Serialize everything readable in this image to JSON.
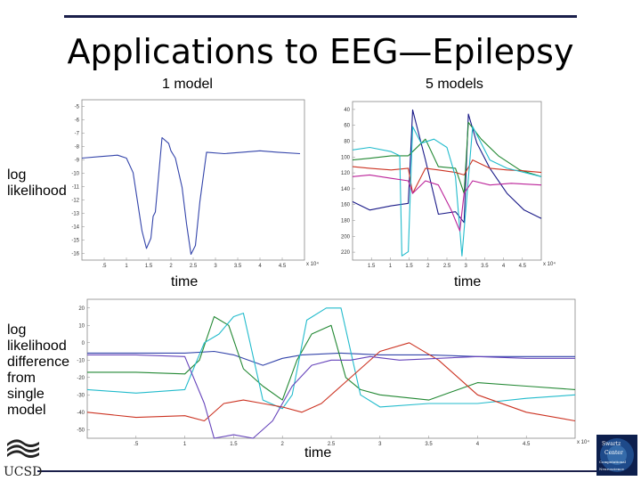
{
  "slide": {
    "title": "Applications to EEG—Epilepsy",
    "label_1model": "1 model",
    "label_5models": "5 models",
    "label_loglik": "log likelihood",
    "label_time_left": "time",
    "label_time_right": "time",
    "label_time_bottom": "time",
    "label_diff": "log likelihood difference from single model",
    "logo_left_text": "UCSD",
    "logo_right_lines": [
      "Swartz",
      "Center",
      "Computational",
      "Neuroscience"
    ]
  },
  "colors": {
    "rule": "#1a1f4a",
    "blue": "#3344aa",
    "green": "#228833",
    "red": "#cc3322",
    "cyan": "#22bbcc",
    "magenta": "#bb2299",
    "navy": "#1a1a88",
    "purple": "#6644bb"
  },
  "chart_data": [
    {
      "type": "line",
      "x_ticks": [
        ".5",
        "1",
        "1.5",
        "2",
        "2.5",
        "3",
        "3.5",
        "4",
        "4.5"
      ],
      "y_ticks": [
        "-5",
        "-6",
        "-7",
        "-8",
        "-9",
        "-10",
        "-11",
        "-12",
        "-13",
        "-14",
        "-15",
        "-16"
      ],
      "x_exponent": "x 10⁴",
      "ylim": [
        -16,
        -5
      ],
      "xlim": [
        0,
        5
      ],
      "series": [
        {
          "color": "#3344aa",
          "x": [
            0.0,
            0.4,
            0.8,
            1.0,
            1.15,
            1.25,
            1.35,
            1.45,
            1.55,
            1.6,
            1.65,
            1.8,
            1.95,
            2.0,
            2.1,
            2.25,
            2.35,
            2.45,
            2.55,
            2.65,
            2.8,
            3.2,
            3.6,
            4.0,
            4.4,
            4.9
          ],
          "y": [
            -9.0,
            -8.9,
            -8.8,
            -9.0,
            -10.0,
            -12.0,
            -14.0,
            -15.2,
            -14.5,
            -13.0,
            -12.7,
            -7.6,
            -8.0,
            -8.5,
            -9.0,
            -11.0,
            -13.5,
            -15.6,
            -15.0,
            -12.0,
            -8.6,
            -8.7,
            -8.6,
            -8.5,
            -8.6,
            -8.7
          ]
        }
      ]
    },
    {
      "type": "line",
      "x_ticks": [
        "1.5",
        "1",
        "1.5",
        "2",
        "2.5",
        "3",
        "3.5",
        "4",
        "4.5"
      ],
      "y_ticks": [
        "40",
        "60",
        "80",
        "100",
        "120",
        "140",
        "160",
        "180",
        "200",
        "220"
      ],
      "x_exponent": "x 10⁴",
      "ylim": [
        220,
        30
      ],
      "xlim": [
        0.6,
        5
      ],
      "series": [
        {
          "color": "#1a1a88",
          "x": [
            0.6,
            1.0,
            1.5,
            1.9,
            2.0,
            2.3,
            2.6,
            3.0,
            3.2,
            3.3,
            3.5,
            3.8,
            4.2,
            4.6,
            5.0
          ],
          "y": [
            150,
            160,
            155,
            152,
            40,
            100,
            165,
            162,
            175,
            45,
            80,
            110,
            140,
            160,
            170
          ]
        },
        {
          "color": "#228833",
          "x": [
            0.6,
            1.0,
            1.5,
            1.9,
            2.0,
            2.3,
            2.6,
            3.0,
            3.2,
            3.3,
            3.6,
            4.0,
            4.5,
            5.0
          ],
          "y": [
            100,
            98,
            95,
            95,
            90,
            75,
            108,
            110,
            140,
            55,
            75,
            95,
            112,
            120
          ]
        },
        {
          "color": "#cc3322",
          "x": [
            0.6,
            1.0,
            1.5,
            1.9,
            2.0,
            2.3,
            2.6,
            3.0,
            3.2,
            3.4,
            3.8,
            4.2,
            4.6,
            5.0
          ],
          "y": [
            108,
            110,
            112,
            110,
            140,
            110,
            112,
            115,
            118,
            100,
            110,
            112,
            113,
            115
          ]
        },
        {
          "color": "#22bbcc",
          "x": [
            0.6,
            1.0,
            1.5,
            1.7,
            1.75,
            1.9,
            2.0,
            2.2,
            2.5,
            2.8,
            3.0,
            3.15,
            3.4,
            3.8,
            4.2,
            5.0
          ],
          "y": [
            88,
            85,
            90,
            95,
            215,
            210,
            60,
            80,
            75,
            85,
            120,
            215,
            60,
            100,
            110,
            120
          ]
        },
        {
          "color": "#bb2299",
          "x": [
            0.6,
            1.0,
            1.5,
            1.9,
            2.0,
            2.3,
            2.6,
            2.9,
            3.1,
            3.2,
            3.4,
            3.8,
            4.3,
            5.0
          ],
          "y": [
            120,
            118,
            122,
            125,
            140,
            125,
            130,
            160,
            185,
            140,
            125,
            130,
            128,
            130
          ]
        }
      ]
    },
    {
      "type": "line",
      "x_ticks": [
        ".5",
        "1",
        "1.5",
        "2",
        "2.5",
        "3",
        "3.5",
        "4",
        "4.5"
      ],
      "y_ticks": [
        "20",
        "10",
        "0",
        "-10",
        "-20",
        "-30",
        "-40",
        "-50"
      ],
      "x_exponent": "x 10⁴",
      "ylim": [
        -50,
        30
      ],
      "xlim": [
        0,
        5
      ],
      "series": [
        {
          "color": "#3344aa",
          "x": [
            0,
            0.5,
            1.0,
            1.3,
            1.5,
            1.8,
            2.0,
            2.2,
            2.6,
            3.0,
            3.5,
            4.0,
            4.5,
            5.0
          ],
          "y": [
            -1,
            -1,
            -1,
            0,
            -2,
            -8,
            -4,
            -2,
            -1,
            -2,
            -2,
            -3,
            -3,
            -3
          ]
        },
        {
          "color": "#228833",
          "x": [
            0,
            0.5,
            1.0,
            1.15,
            1.3,
            1.45,
            1.6,
            1.8,
            2.0,
            2.15,
            2.3,
            2.5,
            2.65,
            2.8,
            3.0,
            3.5,
            4.0,
            4.5,
            5.0
          ],
          "y": [
            -12,
            -12,
            -13,
            -5,
            20,
            15,
            -10,
            -20,
            -28,
            -5,
            10,
            15,
            -15,
            -22,
            -25,
            -28,
            -18,
            -20,
            -22
          ]
        },
        {
          "color": "#22bbcc",
          "x": [
            0,
            0.5,
            1.0,
            1.2,
            1.35,
            1.5,
            1.6,
            1.8,
            2.0,
            2.1,
            2.25,
            2.45,
            2.6,
            2.8,
            3.0,
            3.5,
            4.0,
            4.5,
            5.0
          ],
          "y": [
            -22,
            -24,
            -22,
            5,
            10,
            20,
            22,
            -28,
            -33,
            -25,
            18,
            25,
            25,
            -25,
            -32,
            -30,
            -30,
            -27,
            -25
          ]
        },
        {
          "color": "#cc3322",
          "x": [
            0,
            0.5,
            1.0,
            1.2,
            1.4,
            1.6,
            1.8,
            2.0,
            2.2,
            2.4,
            2.6,
            2.8,
            3.0,
            3.3,
            3.6,
            4.0,
            4.5,
            5.0
          ],
          "y": [
            -35,
            -38,
            -37,
            -40,
            -30,
            -28,
            -30,
            -32,
            -35,
            -30,
            -20,
            -10,
            0,
            5,
            -5,
            -25,
            -35,
            -40
          ]
        },
        {
          "color": "#6644bb",
          "x": [
            0,
            0.5,
            1.0,
            1.2,
            1.3,
            1.5,
            1.7,
            1.9,
            2.1,
            2.3,
            2.5,
            2.7,
            2.9,
            3.2,
            3.6,
            4.0,
            4.5,
            5.0
          ],
          "y": [
            -2,
            -2,
            -3,
            -30,
            -50,
            -48,
            -50,
            -40,
            -20,
            -8,
            -5,
            -5,
            -3,
            -5,
            -4,
            -3,
            -4,
            -4
          ]
        }
      ]
    }
  ]
}
